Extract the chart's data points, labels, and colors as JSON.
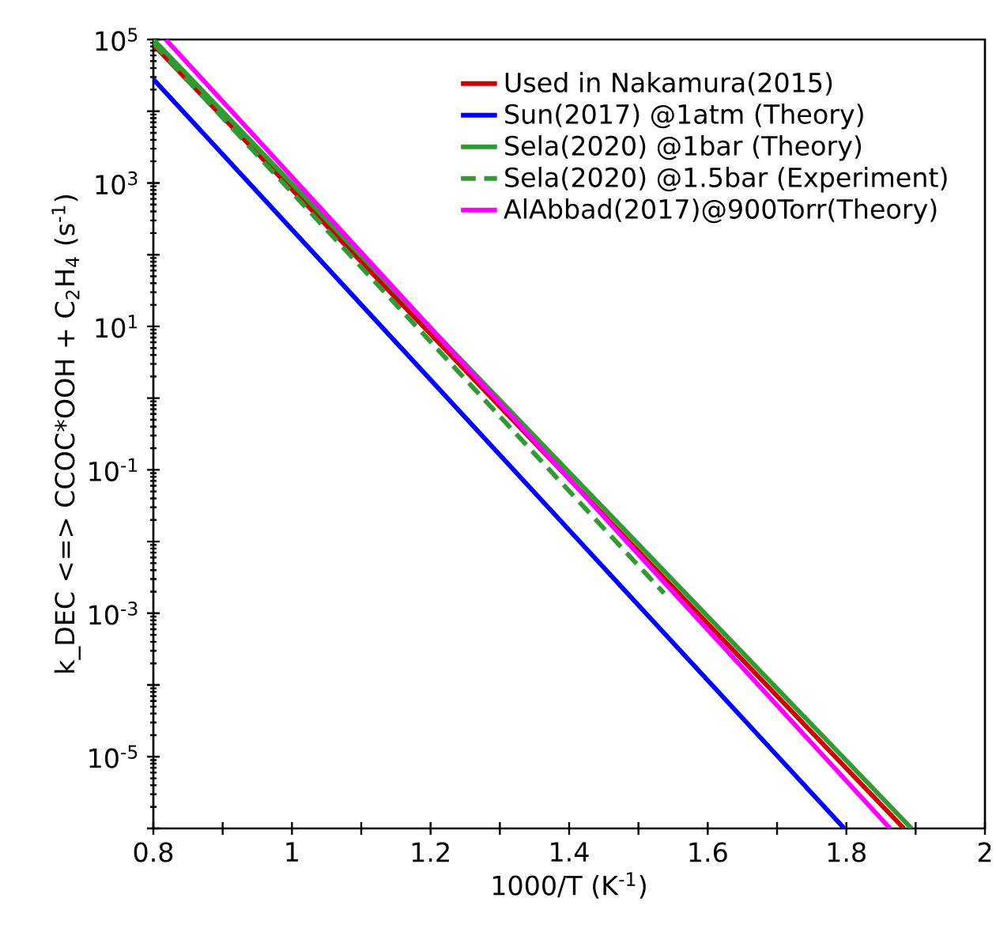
{
  "chart_data": {
    "type": "line",
    "xlabel": "1000/T (K$^{-1}$)",
    "ylabel": "k_DEC <=> CCOC*OOH + C$_{2}$H$_{4}$ (s$^{-1}$)",
    "log": "y",
    "xlim": [
      0.8,
      2
    ],
    "ylim": [
      1e-06,
      100000.0
    ],
    "xticks": [
      0.8,
      {
        "value": 0.9,
        "label": null
      },
      1,
      {
        "value": 1.1,
        "label": null
      },
      1.2,
      {
        "value": 1.3,
        "label": null
      },
      1.4,
      {
        "value": 1.5,
        "label": null
      },
      1.6,
      {
        "value": 1.7,
        "label": null
      },
      1.8,
      {
        "value": 1.9,
        "label": null
      },
      2
    ],
    "yticks": [
      {
        "value": 1e-06,
        "label": null
      },
      {
        "value": 1e-05,
        "label": "10$^{-5}$"
      },
      {
        "value": 0.0001,
        "label": null
      },
      {
        "value": 0.001,
        "label": "10$^{-3}$"
      },
      {
        "value": 0.01,
        "label": null
      },
      {
        "value": 0.1,
        "label": "10$^{-1}$"
      },
      {
        "value": 1,
        "label": null
      },
      {
        "value": 10,
        "label": "10$^{1}$"
      },
      {
        "value": 100,
        "label": null
      },
      {
        "value": 1000,
        "label": "10$^{3}$"
      },
      {
        "value": 10000,
        "label": null
      },
      {
        "value": 100000,
        "label": "10$^{5}$"
      }
    ],
    "grid": false,
    "legend": "top right",
    "marker": "none",
    "series": [
      {
        "name": "Used in Nakamura(2015)",
        "color": "#cc0000",
        "line_style": "solid",
        "x": [
          0.8,
          1.883
        ],
        "values": [
          85000,
          1e-06
        ]
      },
      {
        "name": "Sun(2017) @1atm (Theory)",
        "color": "#0000ff",
        "line_style": "solid",
        "x": [
          0.8,
          1.797
        ],
        "values": [
          28000,
          1e-06
        ]
      },
      {
        "name": "Sela(2020) @1bar (Theory)",
        "color": "#339933",
        "line_style": "solid",
        "x": [
          0.8,
          1.894
        ],
        "values": [
          100000,
          1e-06
        ]
      },
      {
        "name": "Sela(2020) @1.5bar (Experiment)",
        "color": "#339933",
        "line_style": "dashed",
        "x": [
          0.8,
          1.537
        ],
        "values": [
          89000,
          0.0019
        ]
      },
      {
        "name": "AlAbbad(2017)@900Torr(Theory)",
        "color": "#ff00ff",
        "line_style": "solid",
        "x": [
          0.818,
          1.863
        ],
        "values": [
          100000,
          1e-06
        ]
      }
    ]
  }
}
